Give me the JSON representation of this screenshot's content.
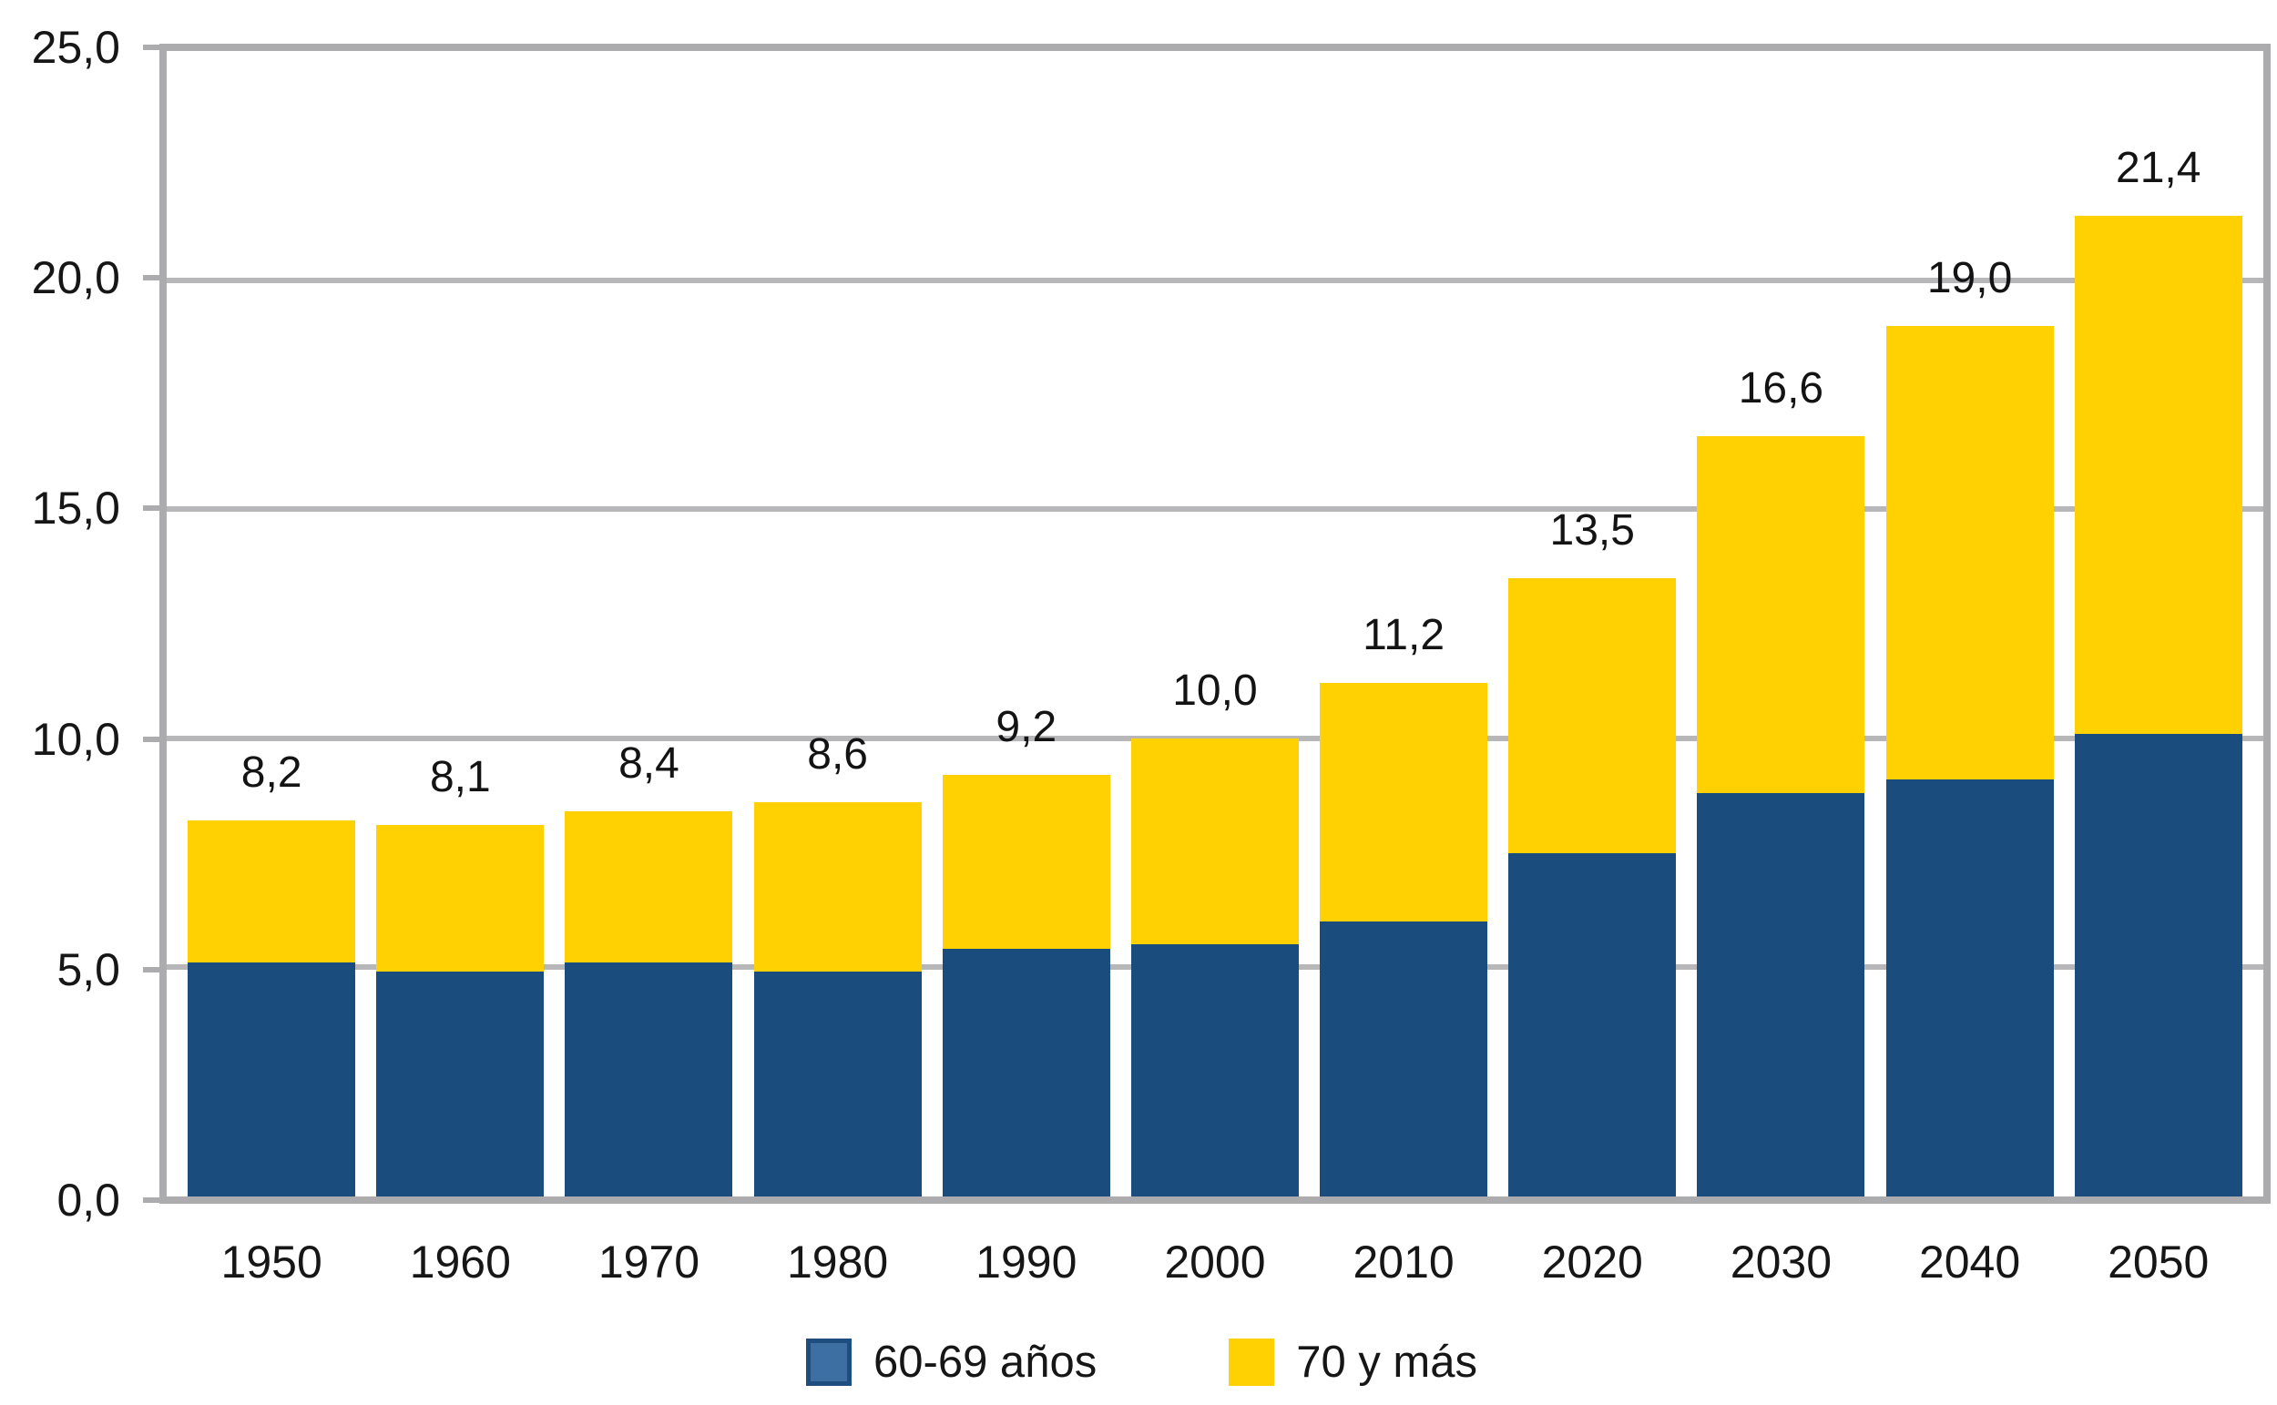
{
  "chart_data": {
    "type": "bar",
    "stacked": true,
    "title": "",
    "xlabel": "",
    "ylabel": "",
    "ylim": [
      0,
      25
    ],
    "grid": true,
    "legend_position": "bottom",
    "categories": [
      "1950",
      "1960",
      "1970",
      "1980",
      "1990",
      "2000",
      "2010",
      "2020",
      "2030",
      "2040",
      "2050"
    ],
    "series": [
      {
        "name": "60-69 años",
        "color": "#1b4c7e",
        "values": [
          5.1,
          4.9,
          5.1,
          4.9,
          5.4,
          5.5,
          6.0,
          7.5,
          8.8,
          9.1,
          10.1
        ]
      },
      {
        "name": "70 y más",
        "color": "#ffd103",
        "values": [
          3.1,
          3.2,
          3.3,
          3.7,
          3.8,
          4.5,
          5.2,
          6.0,
          7.8,
          9.9,
          11.3
        ]
      }
    ],
    "total_labels": [
      "8,2",
      "8,1",
      "8,4",
      "8,6",
      "9,2",
      "10,0",
      "11,2",
      "13,5",
      "16,6",
      "19,0",
      "21,4"
    ],
    "y_ticks": [
      {
        "value": 25,
        "label": "25,0"
      },
      {
        "value": 20,
        "label": "20,0"
      },
      {
        "value": 15,
        "label": "15,0"
      },
      {
        "value": 10,
        "label": "10,0"
      },
      {
        "value": 5,
        "label": "5,0"
      },
      {
        "value": 0,
        "label": "0,0"
      }
    ]
  },
  "legend": {
    "items": [
      {
        "label": "60-69 años",
        "swatch_fill": "#3d6fa3",
        "swatch_border": "#1d4e7e"
      },
      {
        "label": "70 y más",
        "swatch_fill": "#ffd103",
        "swatch_border": "#ffd103"
      }
    ]
  },
  "colors": {
    "bar_blue": "#1b4c7e",
    "bar_yellow": "#ffd103",
    "gridline": "#b7b7ba",
    "axis_border": "#acacaf",
    "text": "#161616",
    "background": "#ffffff"
  }
}
